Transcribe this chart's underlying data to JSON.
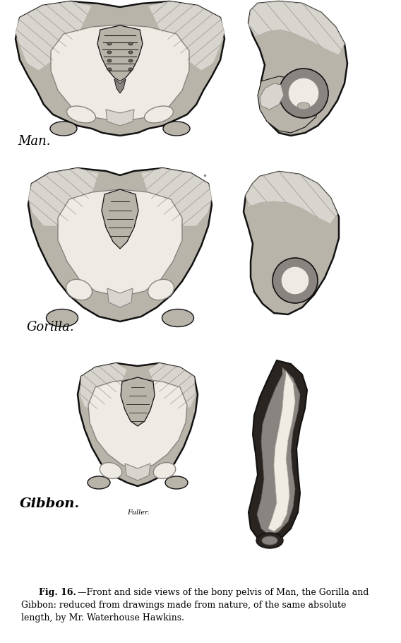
{
  "background_color": "#ffffff",
  "text_color": "#000000",
  "fig_width": 5.68,
  "fig_height": 9.1,
  "dpi": 100,
  "caption_line1_bold": "Fig. 16.",
  "caption_line1_rest": "—Front and side views of the bony pelvis of Man, the Gorilla and",
  "caption_line2": "Gibbon: reduced from drawings made from nature, of the same absolute",
  "caption_line3": "length, by Mr. Waterhouse Hawkins.",
  "labels": {
    "man": "Man.",
    "gorilla": "Gorilla.",
    "gibbon": "Gibbon.",
    "fuller": "Fuller."
  }
}
